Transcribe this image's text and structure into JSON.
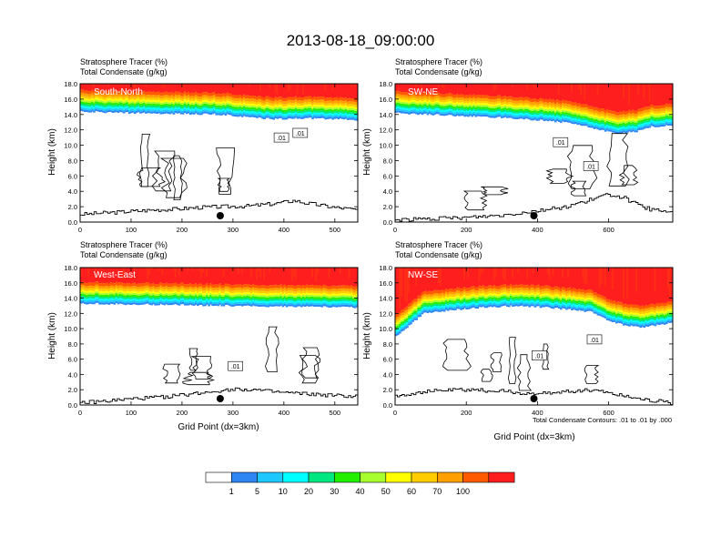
{
  "figure": {
    "title": "2013-08-18_09:00:00",
    "contour_note": "Total Condensate Contours: .01 to .01 by .000"
  },
  "colors": {
    "levels": [
      "#ffffff",
      "#2e86f5",
      "#1ec8ff",
      "#00ffff",
      "#00e680",
      "#22ee00",
      "#a8ff30",
      "#ffff00",
      "#ffcc00",
      "#ffa000",
      "#ff5a00",
      "#ff1e1e"
    ],
    "contour": "#000000",
    "terrain": "#000000",
    "inner_label": "#ffffff"
  },
  "chart_data": [
    {
      "type": "heatmap",
      "name": "South-North",
      "header_line1": "Stratosphere Tracer   (%)",
      "header_line2": "Total Condensate   (g/kg)",
      "ylabel": "Height (km)",
      "xlabel": "",
      "xlim": [
        0,
        545
      ],
      "ylim": [
        0,
        18
      ],
      "xticks": [
        "0",
        "100",
        "200",
        "300",
        "400",
        "500"
      ],
      "yticks": [
        "0.0",
        "2.0",
        "4.0",
        "6.0",
        "8.0",
        "10.0",
        "12.0",
        "14.0",
        "16.0",
        "18.0"
      ],
      "tracer_base_km": [
        [
          0,
          14.4
        ],
        [
          100,
          14.2
        ],
        [
          200,
          14.1
        ],
        [
          280,
          14.0
        ],
        [
          320,
          13.7
        ],
        [
          380,
          13.4
        ],
        [
          450,
          13.5
        ],
        [
          545,
          13.3
        ]
      ],
      "terrain_km": [
        [
          0,
          1.0
        ],
        [
          50,
          1.2
        ],
        [
          100,
          1.4
        ],
        [
          150,
          1.6
        ],
        [
          190,
          1.7
        ],
        [
          230,
          1.9
        ],
        [
          280,
          2.0
        ],
        [
          330,
          2.1
        ],
        [
          380,
          2.4
        ],
        [
          420,
          2.8
        ],
        [
          440,
          2.5
        ],
        [
          470,
          2.2
        ],
        [
          500,
          1.9
        ],
        [
          545,
          1.6
        ]
      ],
      "marker_x": 275,
      "contour_label": ".01",
      "contour_label_positions": [
        [
          395,
          11.0
        ],
        [
          432,
          11.6
        ]
      ]
    },
    {
      "type": "heatmap",
      "name": "SW-NE",
      "header_line1": "Stratosphere Tracer   (%)",
      "header_line2": "Total Condensate   (g/kg)",
      "ylabel": "Height (km)",
      "xlabel": "",
      "xlim": [
        0,
        780
      ],
      "ylim": [
        0,
        18
      ],
      "xticks": [
        "0",
        "200",
        "400",
        "600"
      ],
      "yticks": [
        "0.0",
        "2.0",
        "4.0",
        "6.0",
        "8.0",
        "10.0",
        "12.0",
        "14.0",
        "16.0",
        "18.0"
      ],
      "tracer_base_km": [
        [
          0,
          14.2
        ],
        [
          100,
          14.0
        ],
        [
          200,
          13.8
        ],
        [
          300,
          13.6
        ],
        [
          400,
          13.3
        ],
        [
          500,
          12.9
        ],
        [
          560,
          12.2
        ],
        [
          620,
          11.5
        ],
        [
          680,
          11.8
        ],
        [
          720,
          12.4
        ],
        [
          780,
          12.6
        ]
      ],
      "terrain_km": [
        [
          0,
          0.3
        ],
        [
          100,
          0.4
        ],
        [
          200,
          0.6
        ],
        [
          300,
          0.9
        ],
        [
          400,
          1.5
        ],
        [
          480,
          2.0
        ],
        [
          540,
          2.8
        ],
        [
          600,
          3.6
        ],
        [
          640,
          3.2
        ],
        [
          680,
          2.2
        ],
        [
          720,
          1.6
        ],
        [
          780,
          1.2
        ]
      ],
      "marker_x": 390,
      "contour_label": ".01",
      "contour_label_positions": [
        [
          465,
          10.4
        ],
        [
          550,
          7.3
        ]
      ]
    },
    {
      "type": "heatmap",
      "name": "West-East",
      "header_line1": "Stratosphere Tracer   (%)",
      "header_line2": "Total Condensate   (g/kg)",
      "ylabel": "Height (km)",
      "xlabel": "Grid Point (dx=3km)",
      "xlim": [
        0,
        545
      ],
      "ylim": [
        0,
        18
      ],
      "xticks": [
        "0",
        "100",
        "200",
        "300",
        "400",
        "500"
      ],
      "yticks": [
        "0.0",
        "2.0",
        "4.0",
        "6.0",
        "8.0",
        "10.0",
        "12.0",
        "14.0",
        "16.0",
        "18.0"
      ],
      "tracer_base_km": [
        [
          0,
          13.3
        ],
        [
          100,
          13.2
        ],
        [
          200,
          13.1
        ],
        [
          300,
          13.0
        ],
        [
          400,
          12.9
        ],
        [
          545,
          12.8
        ]
      ],
      "terrain_km": [
        [
          0,
          0.3
        ],
        [
          50,
          0.5
        ],
        [
          100,
          0.8
        ],
        [
          150,
          1.0
        ],
        [
          200,
          1.3
        ],
        [
          260,
          1.8
        ],
        [
          300,
          2.1
        ],
        [
          340,
          2.0
        ],
        [
          380,
          1.7
        ],
        [
          430,
          1.5
        ],
        [
          480,
          1.3
        ],
        [
          545,
          1.1
        ]
      ],
      "marker_x": 275,
      "contour_label": ".01",
      "contour_label_positions": [
        [
          305,
          5.1
        ]
      ]
    },
    {
      "type": "heatmap",
      "name": "NW-SE",
      "header_line1": "Stratosphere Tracer   (%)",
      "header_line2": "Total Condensate   (g/kg)",
      "ylabel": "Height (km)",
      "xlabel": "Grid Point (dx=3km)",
      "xlim": [
        0,
        780
      ],
      "ylim": [
        0,
        18
      ],
      "xticks": [
        "0",
        "200",
        "400",
        "600"
      ],
      "yticks": [
        "0.0",
        "2.0",
        "4.0",
        "6.0",
        "8.0",
        "10.0",
        "12.0",
        "14.0",
        "16.0",
        "18.0"
      ],
      "tracer_base_km": [
        [
          0,
          9.0
        ],
        [
          30,
          10.0
        ],
        [
          80,
          12.0
        ],
        [
          150,
          12.4
        ],
        [
          250,
          12.8
        ],
        [
          350,
          13.0
        ],
        [
          450,
          12.7
        ],
        [
          550,
          12.2
        ],
        [
          600,
          11.0
        ],
        [
          650,
          10.4
        ],
        [
          700,
          10.2
        ],
        [
          780,
          10.8
        ]
      ],
      "terrain_km": [
        [
          0,
          1.2
        ],
        [
          60,
          1.6
        ],
        [
          120,
          1.9
        ],
        [
          200,
          2.0
        ],
        [
          300,
          1.8
        ],
        [
          350,
          1.6
        ],
        [
          400,
          1.4
        ],
        [
          480,
          1.8
        ],
        [
          560,
          2.0
        ],
        [
          620,
          1.4
        ],
        [
          680,
          0.9
        ],
        [
          740,
          0.5
        ],
        [
          780,
          0.2
        ]
      ],
      "marker_x": 390,
      "contour_label": ".01",
      "contour_label_positions": [
        [
          405,
          6.5
        ],
        [
          560,
          8.6
        ]
      ]
    }
  ],
  "colorbar": {
    "labels": [
      "1",
      "5",
      "10",
      "20",
      "30",
      "40",
      "50",
      "60",
      "70",
      "100"
    ]
  }
}
